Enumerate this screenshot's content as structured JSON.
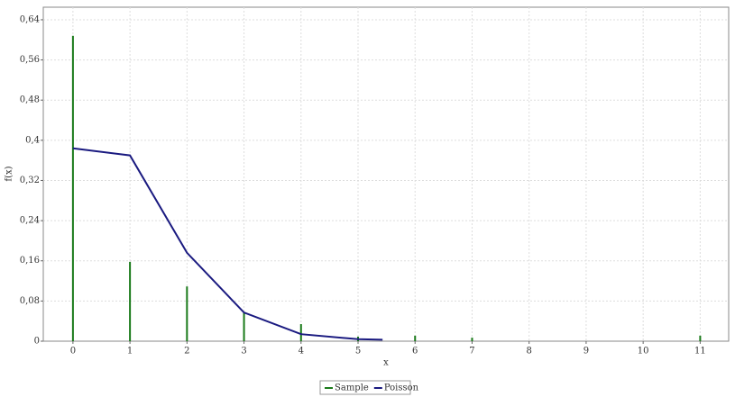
{
  "chart_data": {
    "type": "combo",
    "xlabel": "x",
    "ylabel": "f(x)",
    "xlim": [
      -0.52,
      11.5
    ],
    "xticks": [
      0,
      1,
      2,
      3,
      4,
      5,
      6,
      7,
      8,
      9,
      10,
      11
    ],
    "ylim": [
      0,
      0.665
    ],
    "yticks": [
      0,
      {
        "value": 0.08,
        "label": "0,08"
      },
      {
        "value": 0.16,
        "label": "0,16"
      },
      {
        "value": 0.24,
        "label": "0,24"
      },
      {
        "value": 0.32,
        "label": "0,32"
      },
      {
        "value": 0.4,
        "label": "0,4"
      },
      {
        "value": 0.48,
        "label": "0,48"
      },
      {
        "value": 0.56,
        "label": "0,56"
      },
      {
        "value": 0.64,
        "label": "0,64"
      }
    ],
    "grid": true,
    "legend": "bottom",
    "series": [
      {
        "name": "Sample",
        "type": "bar",
        "color": "#1a7a1a",
        "x": [
          0,
          1,
          2,
          3,
          4,
          5,
          6,
          7,
          11
        ],
        "values": [
          0.608,
          0.158,
          0.109,
          0.057,
          0.034,
          0.009,
          0.011,
          0.007,
          0.011
        ]
      },
      {
        "name": "Poisson",
        "type": "line",
        "color": "#1a1a80",
        "x": [
          0,
          1,
          2,
          3,
          4,
          5,
          5.43
        ],
        "values": [
          0.384,
          0.37,
          0.176,
          0.057,
          0.014,
          0.004,
          0.003
        ]
      }
    ]
  }
}
